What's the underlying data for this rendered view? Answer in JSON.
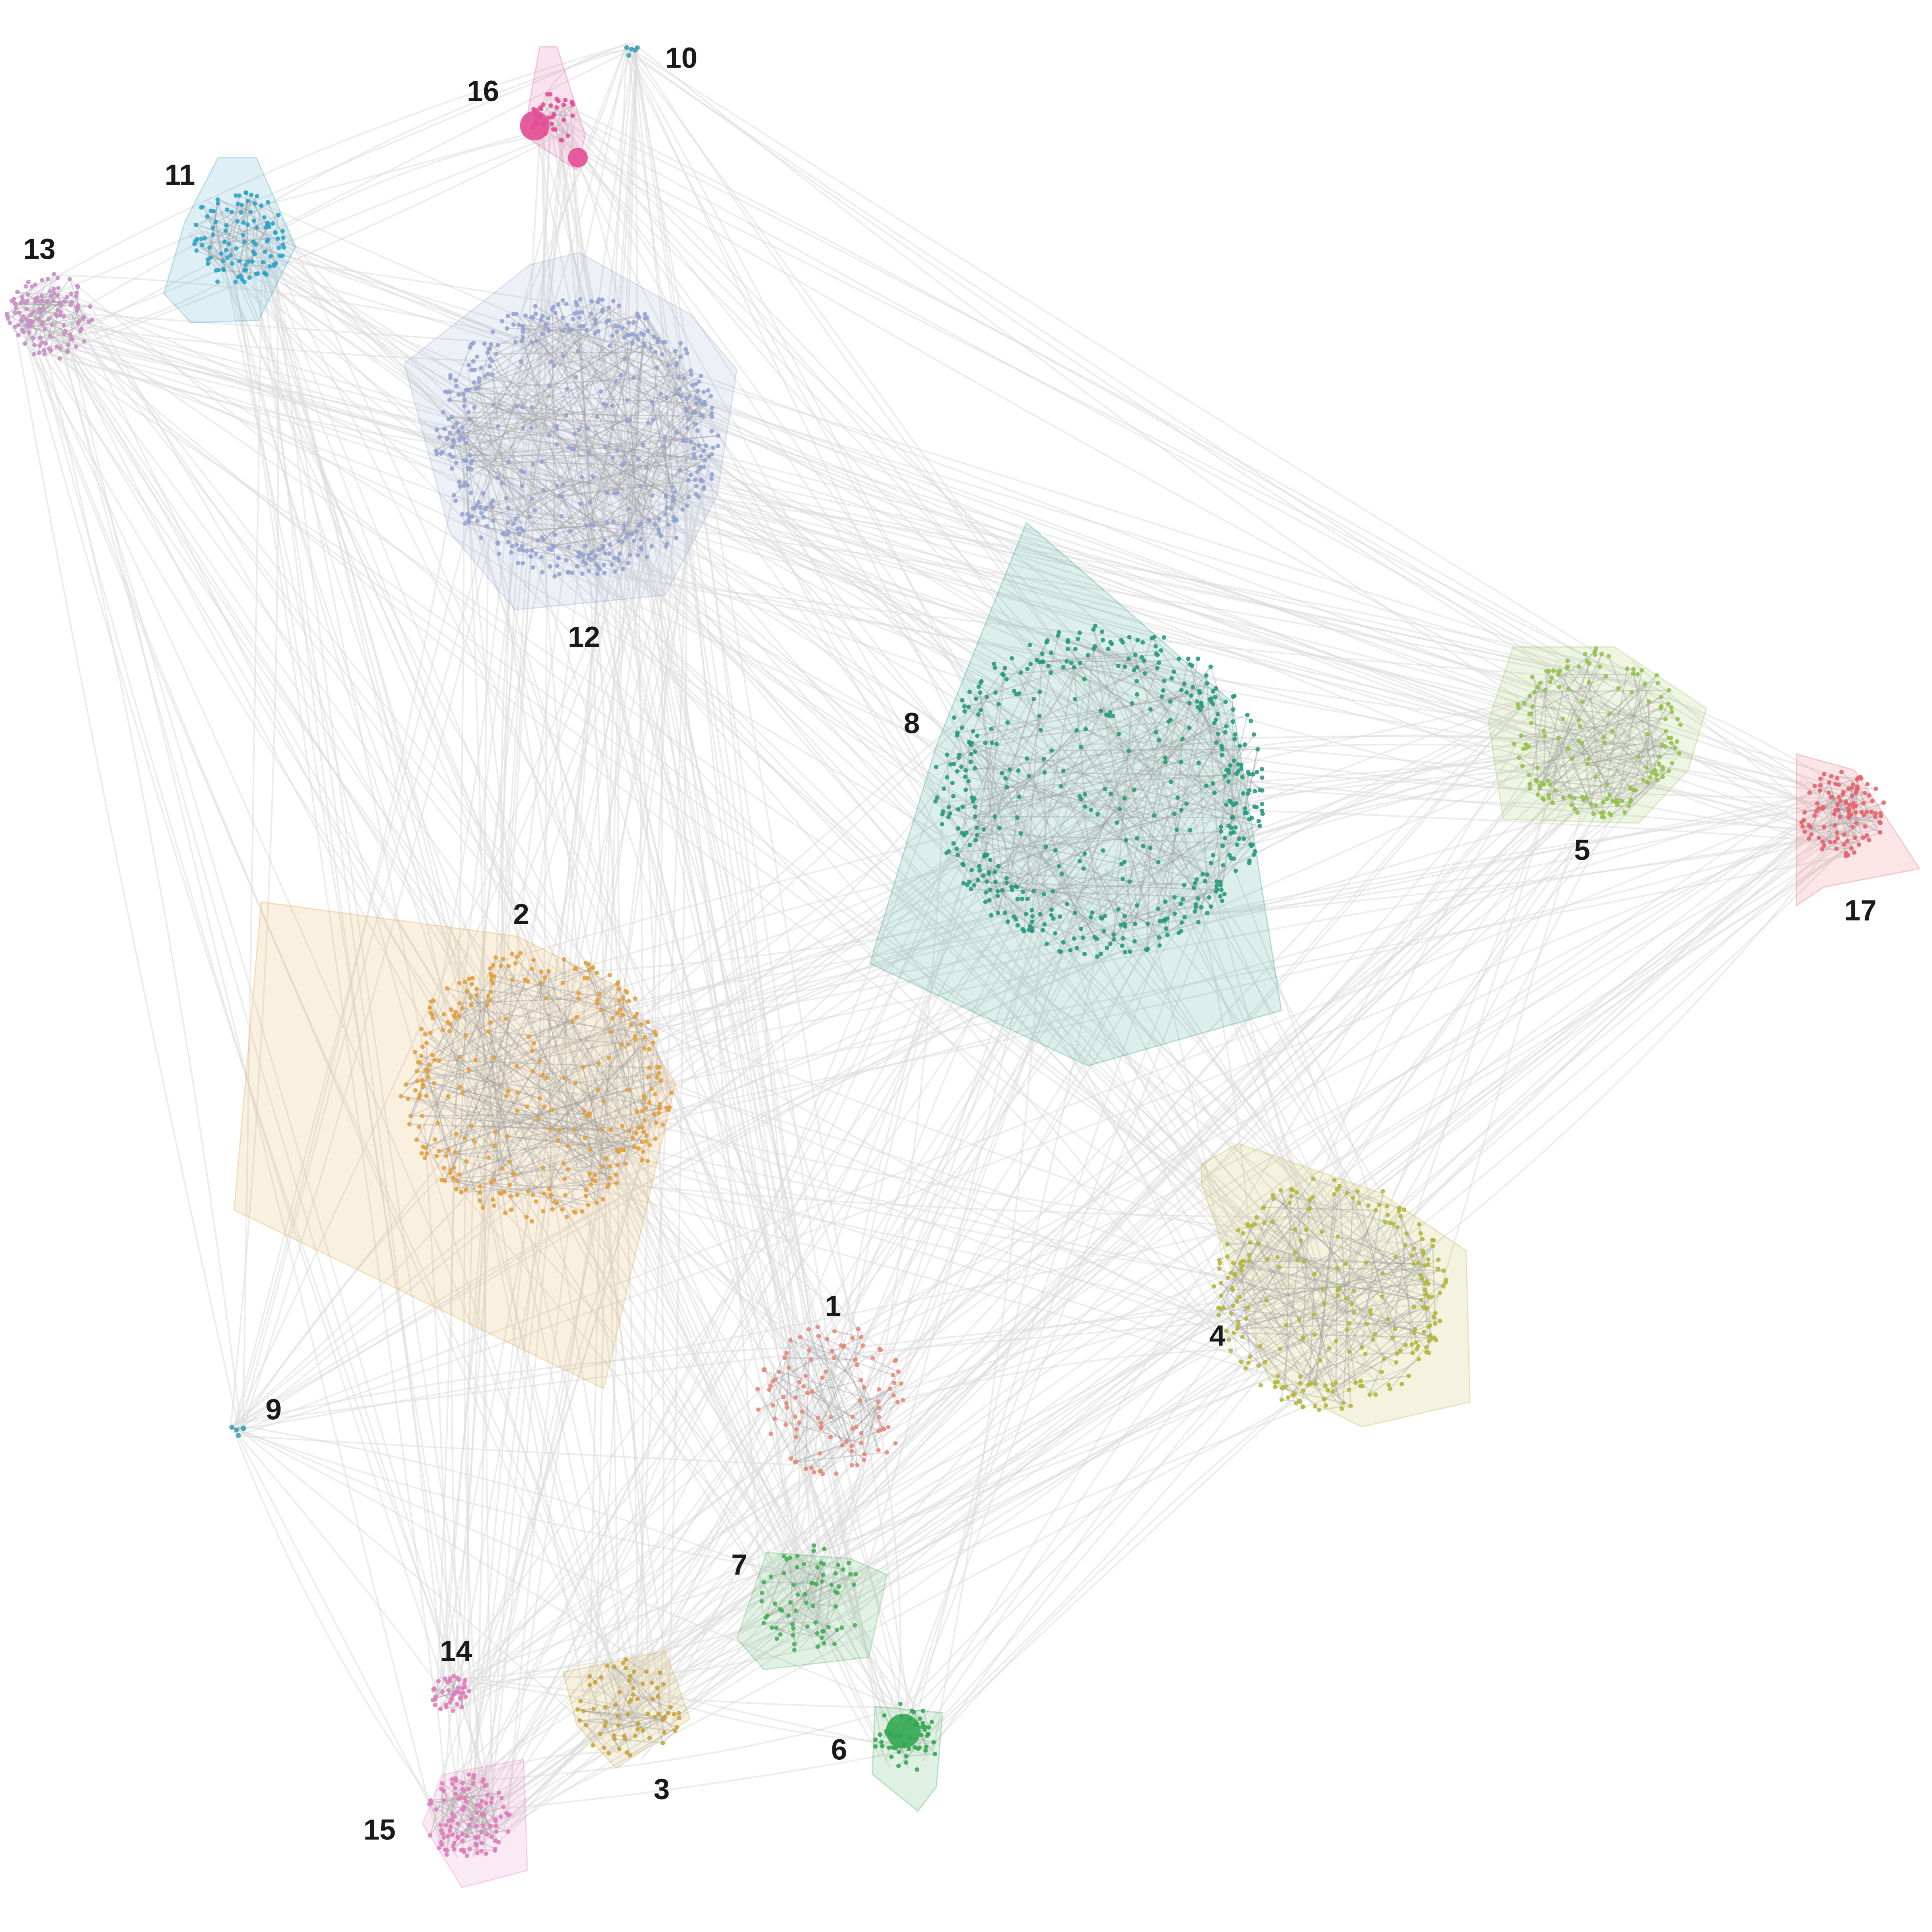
{
  "diagram": {
    "type": "network-community-graph",
    "clusters": [
      {
        "id": "1",
        "label": "1",
        "color": "#e8877a"
      },
      {
        "id": "2",
        "label": "2",
        "color": "#e3a03c"
      },
      {
        "id": "3",
        "label": "3",
        "color": "#c9a23a"
      },
      {
        "id": "4",
        "label": "4",
        "color": "#b7b63a"
      },
      {
        "id": "5",
        "label": "5",
        "color": "#93c24c"
      },
      {
        "id": "6",
        "label": "6",
        "color": "#33a852"
      },
      {
        "id": "7",
        "label": "7",
        "color": "#42b057"
      },
      {
        "id": "8",
        "label": "8",
        "color": "#279a7f"
      },
      {
        "id": "9",
        "label": "9",
        "color": "#3aa3b5"
      },
      {
        "id": "10",
        "label": "10",
        "color": "#3aa3b5"
      },
      {
        "id": "11",
        "label": "11",
        "color": "#2fa3c8"
      },
      {
        "id": "12",
        "label": "12",
        "color": "#93a3d1"
      },
      {
        "id": "13",
        "label": "13",
        "color": "#c98fc6"
      },
      {
        "id": "14",
        "label": "14",
        "color": "#e27bbd"
      },
      {
        "id": "15",
        "label": "15",
        "color": "#e27bbd"
      },
      {
        "id": "16",
        "label": "16",
        "color": "#e24e95"
      },
      {
        "id": "17",
        "label": "17",
        "color": "#e8606a"
      }
    ],
    "colors": {
      "background": "#ffffff",
      "inter_cluster_edge": "#dcdcdc",
      "intra_cluster_edge": "#9a9a9a",
      "label_text": "#1a1a1a"
    }
  }
}
